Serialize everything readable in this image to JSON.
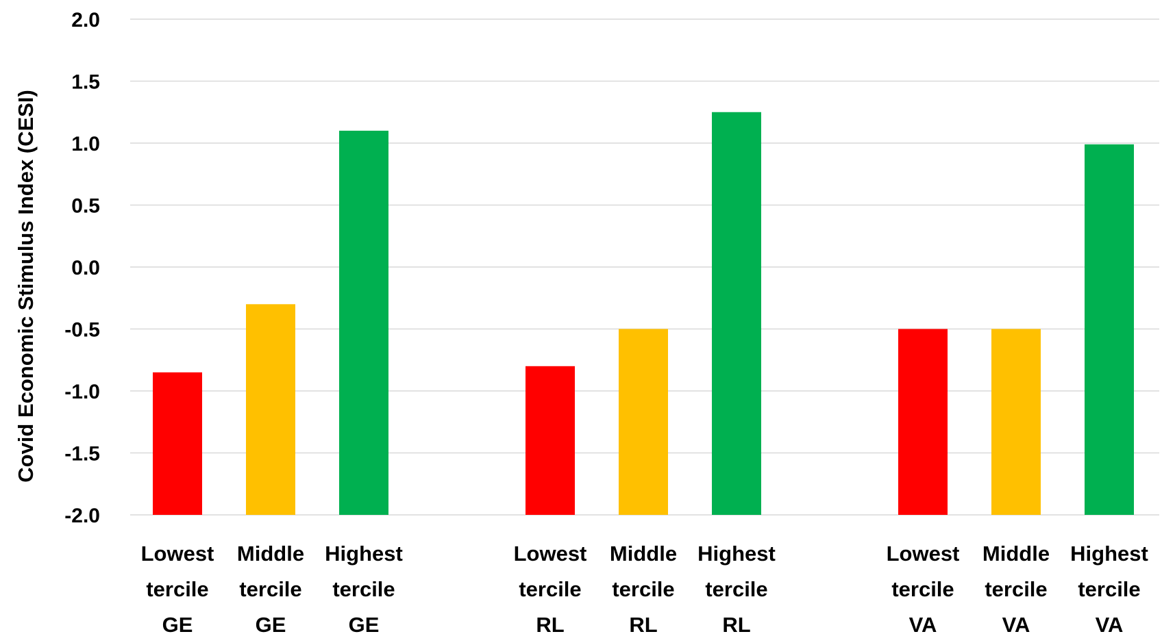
{
  "chart_data": {
    "type": "bar",
    "ylabel": "Covid Economic Stimulus Index (CESI)",
    "ylim": [
      -2.0,
      2.0
    ],
    "yticks": [
      "2.0",
      "1.5",
      "1.0",
      "0.5",
      "0.0",
      "-0.5",
      "-1.0",
      "-1.5",
      "-2.0"
    ],
    "ytick_values": [
      2.0,
      1.5,
      1.0,
      0.5,
      0.0,
      -0.5,
      -1.0,
      -1.5,
      -2.0
    ],
    "grid": true,
    "baseline": -2.0,
    "colors": {
      "lowest": "#ff0000",
      "middle": "#ffc000",
      "highest": "#00b050"
    },
    "groups": [
      {
        "name": "GE",
        "bars": [
          {
            "label": [
              "Lowest",
              "tercile",
              "GE"
            ],
            "value": -0.85,
            "tier": "lowest"
          },
          {
            "label": [
              "Middle",
              "tercile",
              "GE"
            ],
            "value": -0.3,
            "tier": "middle"
          },
          {
            "label": [
              "Highest",
              "tercile",
              "GE"
            ],
            "value": 1.1,
            "tier": "highest"
          }
        ]
      },
      {
        "name": "RL",
        "bars": [
          {
            "label": [
              "Lowest",
              "tercile",
              "RL"
            ],
            "value": -0.8,
            "tier": "lowest"
          },
          {
            "label": [
              "Middle",
              "tercile",
              "RL"
            ],
            "value": -0.5,
            "tier": "middle"
          },
          {
            "label": [
              "Highest",
              "tercile",
              "RL"
            ],
            "value": 1.25,
            "tier": "highest"
          }
        ]
      },
      {
        "name": "VA",
        "bars": [
          {
            "label": [
              "Lowest",
              "tercile",
              "VA"
            ],
            "value": -0.5,
            "tier": "lowest"
          },
          {
            "label": [
              "Middle",
              "tercile",
              "VA"
            ],
            "value": -0.5,
            "tier": "middle"
          },
          {
            "label": [
              "Highest",
              "tercile",
              "VA"
            ],
            "value": 0.99,
            "tier": "highest"
          }
        ]
      }
    ]
  }
}
